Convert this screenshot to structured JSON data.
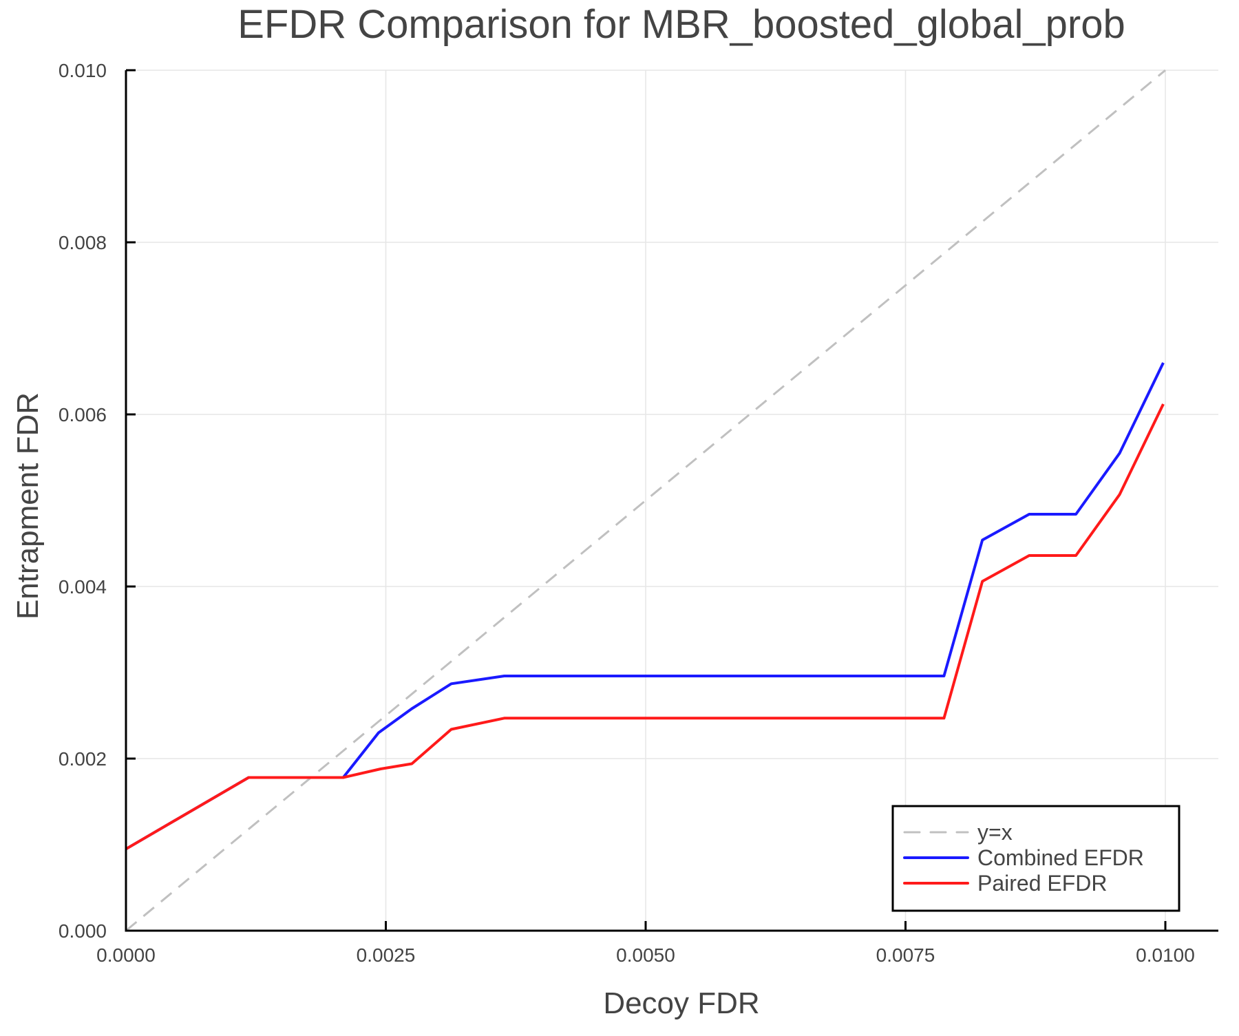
{
  "chart_data": {
    "type": "line",
    "title": "EFDR Comparison for MBR_boosted_global_prob",
    "xlabel": "Decoy FDR",
    "ylabel": "Entrapment FDR",
    "xlim": [
      0.0,
      0.0105
    ],
    "ylim": [
      0.0,
      0.01
    ],
    "xticks": [
      0.0,
      0.0025,
      0.005,
      0.0075,
      0.01
    ],
    "xtick_labels": [
      "0.0000",
      "0.0025",
      "0.0050",
      "0.0075",
      "0.0100"
    ],
    "yticks": [
      0.0,
      0.002,
      0.004,
      0.006,
      0.008,
      0.01
    ],
    "ytick_labels": [
      "0.000",
      "0.002",
      "0.004",
      "0.006",
      "0.008",
      "0.010"
    ],
    "grid": true,
    "legend_position": "bottom-right",
    "series": [
      {
        "name": "y=x",
        "color": "#c0c0c0",
        "style": "dashed",
        "x": [
          0.0,
          0.01
        ],
        "y": [
          0.0,
          0.01
        ]
      },
      {
        "name": "Combined EFDR",
        "color": "#1a1aff",
        "style": "solid",
        "x": [
          0.0,
          0.00118,
          0.00209,
          0.00243,
          0.00275,
          0.00313,
          0.00364,
          0.00787,
          0.00824,
          0.00869,
          0.00914,
          0.00956,
          0.00998
        ],
        "y": [
          0.00095,
          0.00178,
          0.00178,
          0.0023,
          0.00258,
          0.00287,
          0.00296,
          0.00296,
          0.00454,
          0.00484,
          0.00484,
          0.00555,
          0.0066
        ]
      },
      {
        "name": "Paired EFDR",
        "color": "#ff1a1a",
        "style": "solid",
        "x": [
          0.0,
          0.00118,
          0.00209,
          0.00245,
          0.00275,
          0.00313,
          0.00364,
          0.00787,
          0.00824,
          0.00869,
          0.00914,
          0.00956,
          0.00998
        ],
        "y": [
          0.00095,
          0.00178,
          0.00178,
          0.00188,
          0.00194,
          0.00234,
          0.00247,
          0.00247,
          0.00406,
          0.00436,
          0.00436,
          0.00507,
          0.00612
        ]
      }
    ]
  }
}
